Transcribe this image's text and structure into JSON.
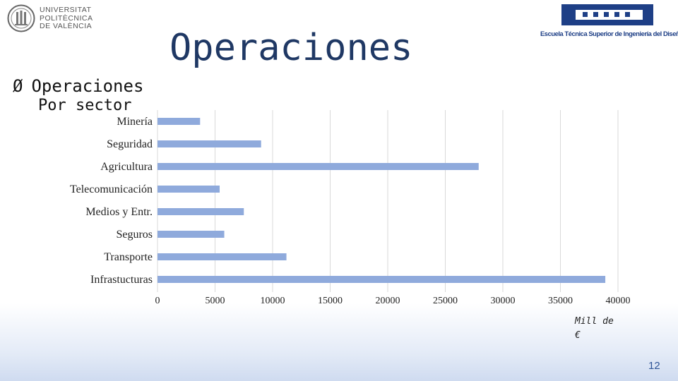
{
  "slide": {
    "title": "Operaciones",
    "bullet_arrow": "Ø",
    "bullet_text": "Operaciones",
    "bullet_continuation": "Por sector",
    "unit_line1": "Mill de",
    "unit_line2": "€",
    "page_number": "12"
  },
  "logos": {
    "upv_line1": "UNIVERSITAT",
    "upv_line2": "POLITÈCNICA",
    "upv_line3": "DE VALÈNCIA",
    "etsid_text": "Escuela Técnica Superior de Ingeniería del Diseño"
  },
  "colors": {
    "bar": "#8faadc",
    "title": "#1f3864",
    "etsid": "#1e3f86",
    "grid": "#d9d9d9"
  },
  "chart_data": {
    "type": "bar",
    "orientation": "horizontal",
    "categories": [
      "Minería",
      "Seguridad",
      "Agricultura",
      "Telecomunicación",
      "Medios y Entr.",
      "Seguros",
      "Transporte",
      "Infrastucturas"
    ],
    "values": [
      3700,
      9000,
      27900,
      5400,
      7500,
      5800,
      11200,
      38900
    ],
    "xlim": [
      0,
      40000
    ],
    "xticks": [
      "0",
      "5000",
      "10000",
      "15000",
      "20000",
      "25000",
      "30000",
      "35000",
      "40000"
    ],
    "grid": true
  }
}
